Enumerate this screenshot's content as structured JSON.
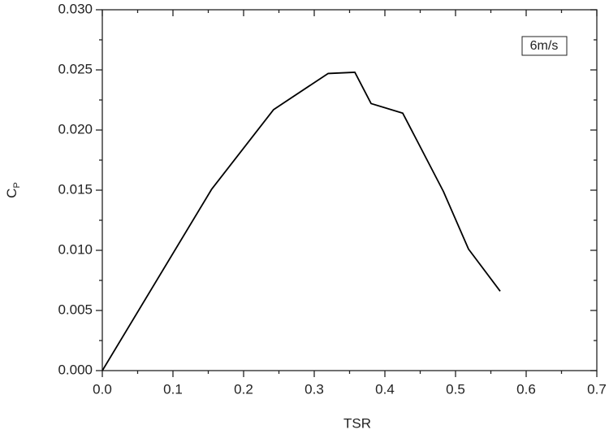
{
  "chart_data": {
    "type": "line",
    "x_label": "TSR",
    "y_label": {
      "text": "C",
      "subscript": "P"
    },
    "x": [
      0,
      0.155,
      0.2425,
      0.3195,
      0.3575,
      0.3805,
      0.4253,
      0.4828,
      0.5184,
      0.5632
    ],
    "series": [
      {
        "name": "6m/s",
        "color": "#000000",
        "values": [
          0,
          0.0151,
          0.0217,
          0.0247,
          0.0248,
          0.0222,
          0.0214,
          0.0149,
          0.0101,
          0.0066
        ]
      }
    ],
    "xlim": [
      0,
      0.7
    ],
    "xticks": [
      {
        "value": 0,
        "label": "0.0"
      },
      0.1,
      0.2,
      0.3,
      0.4,
      0.5,
      0.6,
      0.7
    ],
    "ylim": [
      0,
      0.03
    ],
    "yticks": [
      {
        "value": 0,
        "label": "0.000"
      },
      0.005,
      {
        "value": 0.01,
        "label": "0.010"
      },
      0.015,
      {
        "value": 0.02,
        "label": "0.020"
      },
      0.025,
      {
        "value": 0.03,
        "label": "0.030"
      }
    ],
    "grid": false,
    "legend": "top-right"
  }
}
